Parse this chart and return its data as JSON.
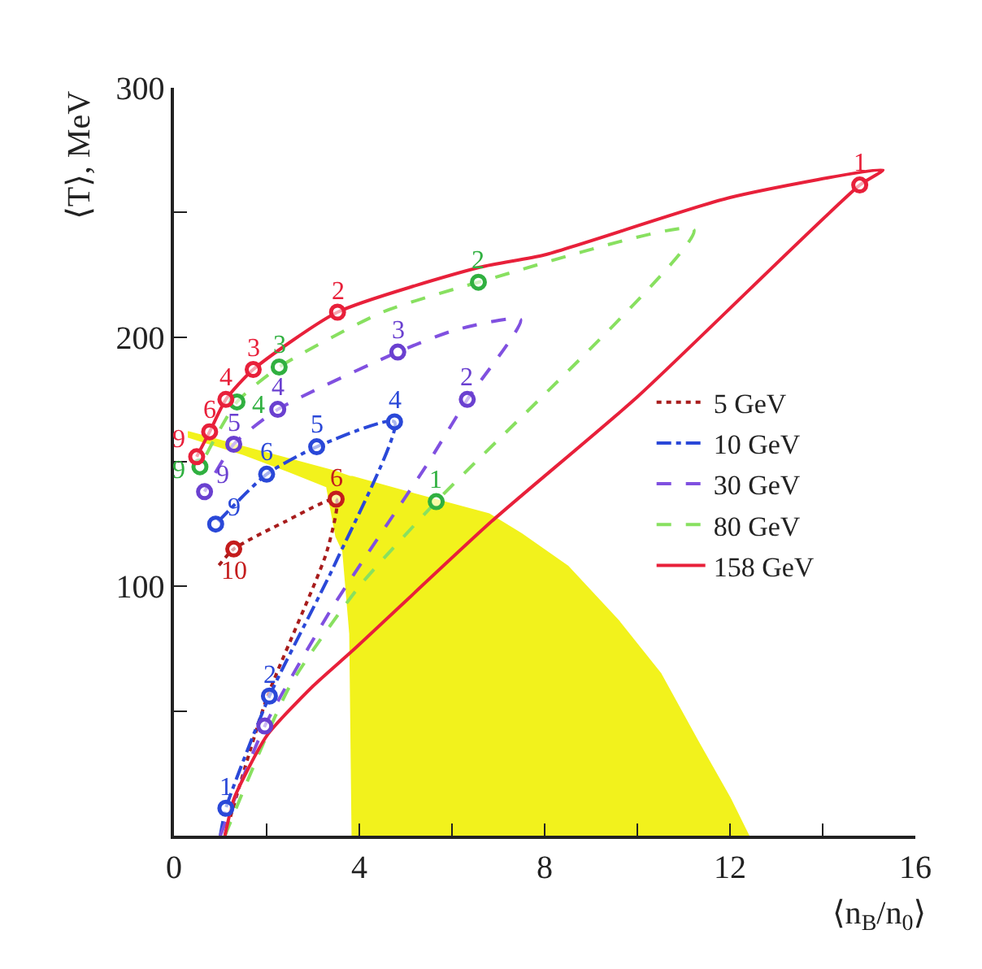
{
  "chart_data": {
    "type": "line",
    "xlabel": "⟨n$_{B}$/n$_{0}$⟩",
    "ylabel": "⟨T⟩, MeV",
    "xlim": [
      0,
      16
    ],
    "xticks": [
      0,
      {
        "value": 2,
        "label": null
      },
      4,
      {
        "value": 6,
        "label": null
      },
      8,
      {
        "value": 10,
        "label": null
      },
      12,
      {
        "value": 14,
        "label": null
      },
      16
    ],
    "ylim": [
      0,
      300
    ],
    "yticks": [
      {
        "value": 0,
        "label": null
      },
      {
        "value": 50,
        "label": null
      },
      100,
      {
        "value": 150,
        "label": null
      },
      200,
      {
        "value": 250,
        "label": null
      },
      300
    ],
    "grid": false,
    "legend": "right",
    "series": [
      {
        "type": "area",
        "color": "#f2f21c",
        "x": [
          0.3,
          1.5,
          2.5,
          3.3,
          3.5,
          3.65,
          3.8,
          3.85,
          5,
          6.8,
          7.5,
          8.5,
          9.6,
          10.5,
          11.3,
          12,
          12.4,
          3.85,
          3.8,
          3.65,
          3.5,
          3.3,
          2.5,
          1.5,
          0.3
        ],
        "values": [
          162,
          156,
          151,
          147,
          146,
          145,
          144,
          144,
          138,
          129,
          121,
          108,
          86,
          65,
          38,
          15,
          0,
          0,
          81,
          114,
          120,
          140,
          146,
          153,
          160
        ]
      },
      {
        "name": "5 GeV",
        "color": "#a81c1c",
        "line_style": "dotted",
        "x": [
          1.1,
          2.0,
          3.3,
          3.5,
          2.4,
          1.29,
          0.95
        ],
        "values": [
          0,
          55,
          114,
          135,
          126,
          115,
          108
        ]
      },
      {
        "name": "10 GeV",
        "color": "#2a48d8",
        "line_style": "dashdot",
        "x": [
          1.0,
          1.12,
          2.06,
          3.5,
          4.76,
          3.08,
          2.0,
          0.9
        ],
        "values": [
          0,
          11,
          56,
          110,
          166,
          156,
          145,
          125
        ]
      },
      {
        "name": "30 GeV",
        "color": "#8050e0",
        "line_style": "dashed",
        "x": [
          1.0,
          1.96,
          3.4,
          5.5,
          6.33,
          7.48,
          6.1,
          4.83,
          2.24,
          1.29,
          0.66
        ],
        "values": [
          0,
          44,
          91,
          150,
          175,
          207,
          203,
          194,
          171,
          157,
          138
        ]
      },
      {
        "name": "80 GeV",
        "color": "#88e060",
        "line_style": "dashed",
        "x": [
          1.1,
          2.5,
          4.0,
          5.66,
          11.22,
          6.57,
          4.5,
          2.27,
          1.36,
          0.56
        ],
        "values": [
          0,
          60,
          100,
          134,
          243,
          222,
          210,
          188,
          174,
          148
        ]
      },
      {
        "name": "158 GeV",
        "color": "#e8203a",
        "line_style": "solid",
        "x": [
          1.1,
          1.3,
          2.0,
          3.0,
          3.9,
          6.85,
          10,
          14.8,
          15.3,
          12,
          8,
          6.6,
          3.53,
          1.71,
          1.12,
          0.77,
          0.49
        ],
        "values": [
          0,
          15,
          40,
          60,
          75,
          126,
          176,
          261,
          267,
          256,
          233,
          228,
          210,
          187,
          175,
          162,
          152
        ]
      },
      {
        "type": "scatter",
        "color": "#c41c1c",
        "marker": "circle",
        "x": [
          3.5,
          1.29
        ],
        "values": [
          135,
          115
        ]
      },
      {
        "type": "scatter",
        "color": "#2a48d8",
        "marker": "circle",
        "x": [
          1.12,
          2.06,
          4.76,
          3.08,
          2.0,
          0.9
        ],
        "values": [
          11,
          56,
          166,
          156,
          145,
          125
        ]
      },
      {
        "type": "scatter",
        "color": "#6a40d0",
        "marker": "circle",
        "x": [
          1.96,
          6.33,
          4.83,
          2.24,
          1.29,
          0.66
        ],
        "values": [
          44,
          175,
          194,
          171,
          157,
          138
        ]
      },
      {
        "type": "scatter",
        "color": "#30b040",
        "marker": "circle",
        "x": [
          5.66,
          6.57,
          2.27,
          1.36,
          0.56
        ],
        "values": [
          134,
          222,
          188,
          174,
          148
        ]
      },
      {
        "type": "scatter",
        "color": "#e8203a",
        "marker": "circle",
        "x": [
          14.8,
          3.53,
          1.71,
          1.12,
          0.77,
          0.49
        ],
        "values": [
          261,
          210,
          187,
          175,
          162,
          152
        ]
      }
    ],
    "annotations": [
      {
        "text": "6",
        "x": 3.5,
        "y": 135
      },
      {
        "text": "10",
        "x": 1.29,
        "y": 115
      },
      {
        "text": "1",
        "x": 1.12,
        "y": 11
      },
      {
        "text": "2",
        "x": 2.06,
        "y": 56
      },
      {
        "text": "4",
        "x": 4.76,
        "y": 166
      },
      {
        "text": "5",
        "x": 3.08,
        "y": 156
      },
      {
        "text": "6",
        "x": 2.0,
        "y": 145
      },
      {
        "text": "9",
        "x": 0.9,
        "y": 125
      },
      {
        "text": "2",
        "x": 6.33,
        "y": 175
      },
      {
        "text": "3",
        "x": 4.83,
        "y": 194
      },
      {
        "text": "4",
        "x": 2.24,
        "y": 171
      },
      {
        "text": "5",
        "x": 1.29,
        "y": 157
      },
      {
        "text": "9",
        "x": 0.66,
        "y": 138
      },
      {
        "text": "1",
        "x": 5.66,
        "y": 134
      },
      {
        "text": "2",
        "x": 6.57,
        "y": 222
      },
      {
        "text": "3",
        "x": 2.27,
        "y": 188
      },
      {
        "text": "4",
        "x": 1.36,
        "y": 174
      },
      {
        "text": "9",
        "x": 0.56,
        "y": 148
      },
      {
        "text": "1",
        "x": 14.8,
        "y": 261
      },
      {
        "text": "2",
        "x": 3.53,
        "y": 210
      },
      {
        "text": "3",
        "x": 1.71,
        "y": 187
      },
      {
        "text": "4",
        "x": 1.12,
        "y": 175
      },
      {
        "text": "6",
        "x": 0.77,
        "y": 162
      },
      {
        "text": "9",
        "x": 0.49,
        "y": 152
      }
    ]
  }
}
